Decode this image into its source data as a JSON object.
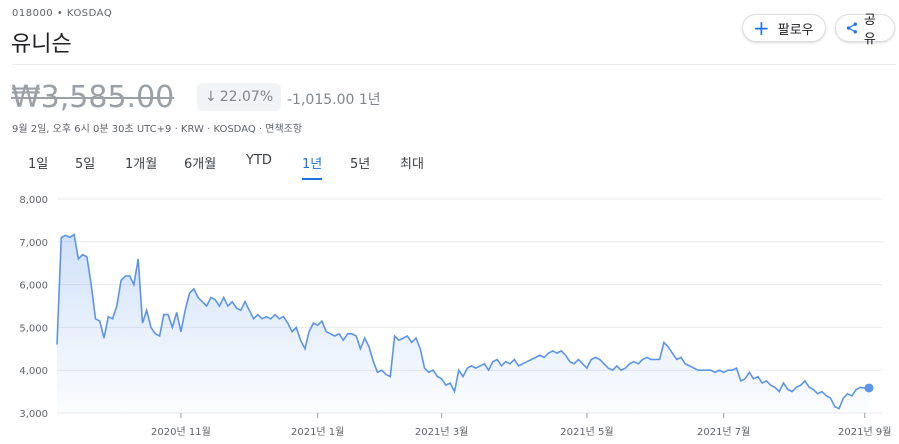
{
  "header": {
    "ticker": "018000 • KOSDAQ",
    "name": "유니슨",
    "follow": "팔로우",
    "share": "공유"
  },
  "quote": {
    "price": "₩3,585.00",
    "change_pct": "22.07%",
    "change_abs": "-1,015.00 1년",
    "disclaimer": "9월 2일, 오후 6시 0분 30초 UTC+9 · KRW · KOSDAQ · 면책조항"
  },
  "tabs": {
    "items": [
      "1일",
      "5일",
      "1개월",
      "6개월",
      "YTD",
      "1년",
      "5년",
      "최대"
    ],
    "selected": 5
  },
  "chart_data": {
    "type": "line",
    "color": "#5b95ea",
    "grid": true,
    "categories": [
      null,
      null,
      null,
      null,
      null,
      null,
      null,
      null,
      null,
      null,
      null,
      null,
      null,
      null,
      null,
      null,
      null,
      null,
      null,
      null,
      null,
      null,
      null,
      null,
      null,
      null,
      null,
      null,
      null,
      null,
      null,
      null,
      null,
      null,
      null,
      null,
      null,
      null,
      null,
      null,
      null,
      null,
      null,
      null,
      null,
      null,
      null,
      null,
      null,
      null,
      null,
      null,
      null,
      null,
      null,
      null,
      null,
      null,
      null,
      null,
      null,
      null,
      null,
      null,
      null,
      null,
      null,
      null,
      null,
      null,
      null,
      null,
      null,
      null,
      null,
      null,
      null,
      null,
      null,
      null,
      null,
      null,
      null,
      null,
      null,
      null,
      null,
      null,
      null,
      null,
      null,
      null,
      null,
      null,
      null,
      null,
      null,
      null,
      null,
      null,
      null,
      null,
      null,
      null,
      null,
      null,
      null,
      null,
      null,
      null,
      null,
      null,
      null,
      null,
      null,
      null,
      null,
      null,
      null,
      null,
      null,
      null,
      null,
      null,
      null,
      null,
      null,
      null,
      null,
      null,
      null,
      null,
      null,
      null,
      null,
      null,
      null,
      null,
      null,
      null,
      null,
      null,
      null,
      null,
      null,
      null,
      null,
      null,
      null,
      null,
      null,
      null,
      null,
      null,
      null,
      null,
      null,
      null,
      null,
      null,
      null,
      null,
      null,
      null,
      null,
      null,
      null,
      null,
      null,
      null,
      null,
      null,
      null,
      null,
      null,
      null,
      null,
      null,
      null,
      null,
      null,
      null,
      null,
      null,
      null,
      null,
      null,
      null,
      null,
      null,
      null
    ],
    "values": [
      4600,
      7100,
      7150,
      7100,
      7170,
      6600,
      6700,
      6650,
      6000,
      5200,
      5150,
      4750,
      5250,
      5200,
      5500,
      6100,
      6200,
      6200,
      6000,
      6600,
      5100,
      5400,
      5000,
      4850,
      4800,
      5300,
      5300,
      5000,
      5350,
      4900,
      5400,
      5800,
      5900,
      5700,
      5600,
      5500,
      5700,
      5650,
      5500,
      5700,
      5500,
      5600,
      5450,
      5400,
      5600,
      5400,
      5200,
      5300,
      5200,
      5250,
      5200,
      5300,
      5200,
      5250,
      5100,
      4900,
      5000,
      4700,
      4500,
      4900,
      5100,
      5050,
      5150,
      4900,
      4850,
      4800,
      4850,
      4700,
      4850,
      4850,
      4800,
      4500,
      4750,
      4550,
      4200,
      3950,
      4000,
      3900,
      3850,
      4800,
      4700,
      4750,
      4800,
      4650,
      4750,
      4500,
      4050,
      3950,
      4000,
      3850,
      3800,
      3650,
      3700,
      3500,
      4000,
      3850,
      4050,
      4100,
      4050,
      4100,
      4150,
      4000,
      4200,
      4250,
      4100,
      4200,
      4150,
      4250,
      4100,
      4150,
      4200,
      4250,
      4300,
      4350,
      4300,
      4400,
      4450,
      4400,
      4450,
      4350,
      4200,
      4150,
      4250,
      4150,
      4050,
      4250,
      4300,
      4250,
      4150,
      4050,
      4000,
      4100,
      4000,
      4050,
      4150,
      4200,
      4150,
      4250,
      4300,
      4250,
      4250,
      4250,
      4650,
      4550,
      4400,
      4250,
      4300,
      4150,
      4100,
      4050,
      4000,
      4000,
      4000,
      4000,
      3950,
      4000,
      3950,
      4000,
      4000,
      4050,
      3750,
      3800,
      3950,
      3800,
      3850,
      3700,
      3750,
      3650,
      3600,
      3500,
      3700,
      3550,
      3500,
      3600,
      3650,
      3750,
      3600,
      3550,
      3450,
      3500,
      3400,
      3350,
      3150,
      3100,
      3350,
      3450,
      3400,
      3550,
      3600,
      3580,
      3585
    ],
    "ylim": [
      3000,
      8000
    ],
    "yticks": [
      {
        "value": 3000,
        "label": "3,000"
      },
      {
        "value": 4000,
        "label": "4,000"
      },
      {
        "value": 5000,
        "label": "5,000"
      },
      {
        "value": 6000,
        "label": "6,000"
      },
      {
        "value": 7000,
        "label": "7,000"
      },
      {
        "value": 8000,
        "label": "8,000"
      }
    ],
    "xticks": [
      {
        "value": 29,
        "label": "2020년 11월"
      },
      {
        "value": 61,
        "label": "2021년 1월"
      },
      {
        "value": 90,
        "label": "2021년 3월"
      },
      {
        "value": 124,
        "label": "2021년 5월"
      },
      {
        "value": 156,
        "label": "2021년 7월"
      },
      {
        "value": 189,
        "label": "2021년 9월"
      }
    ]
  }
}
